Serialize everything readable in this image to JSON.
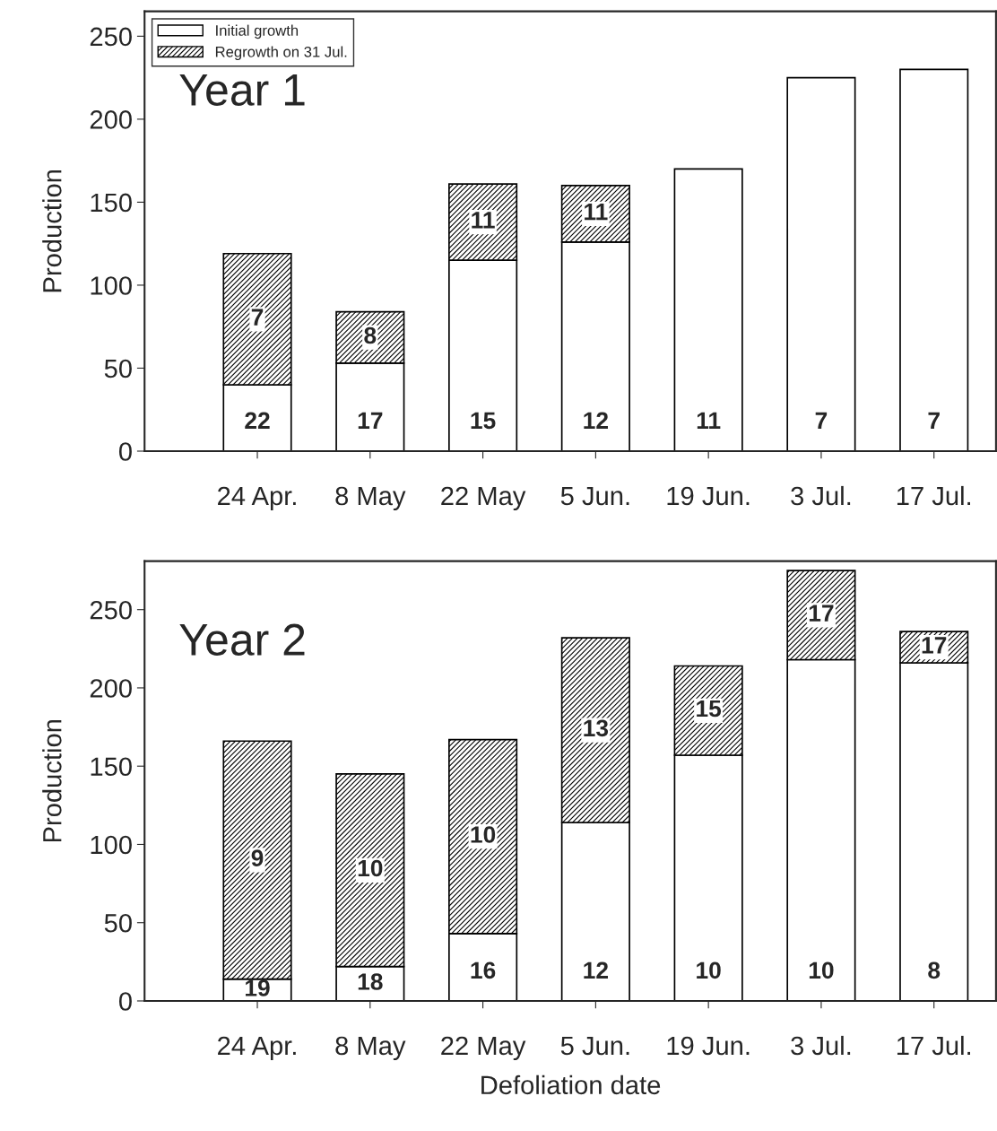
{
  "chart_data": [
    {
      "type": "bar",
      "title": "Year 1",
      "ylabel": "Production",
      "stacked": true,
      "legend": "top left",
      "grid": false,
      "categories": [
        "24 Apr.",
        "8 May",
        "22 May",
        "5 Jun.",
        "19 Jun.",
        "3 Jul.",
        "17 Jul."
      ],
      "ylim": [
        0,
        265
      ],
      "yticks": [
        0,
        50,
        100,
        150,
        200,
        250
      ],
      "series": [
        {
          "name": "Initial growth",
          "color": "#ffffff",
          "values": [
            40,
            53,
            115,
            126,
            170,
            225,
            230
          ]
        },
        {
          "name": "Regrowth on 31 Jul.",
          "color": "#000000",
          "values": [
            79,
            31,
            46,
            34,
            null,
            null,
            null
          ]
        }
      ],
      "annotations": [
        "22",
        "7",
        "17",
        "8",
        "15",
        "11",
        "12",
        "11",
        "11",
        "7",
        "7"
      ]
    },
    {
      "type": "bar",
      "title": "Year 2",
      "ylabel": "Production",
      "xlabel": "Defoliation date",
      "stacked": true,
      "grid": false,
      "categories": [
        "24 Apr.",
        "8 May",
        "22 May",
        "5 Jun.",
        "19 Jun.",
        "3 Jul.",
        "17 Jul."
      ],
      "ylim": [
        0,
        281
      ],
      "yticks": [
        0,
        50,
        100,
        150,
        200,
        250
      ],
      "series": [
        {
          "color": "#ffffff",
          "values": [
            14,
            22,
            43,
            114,
            157,
            218,
            216
          ]
        },
        {
          "color": "#000000",
          "values": [
            152,
            123,
            124,
            118,
            57,
            57,
            20
          ]
        }
      ],
      "annotations": [
        "19",
        "9",
        "18",
        "10",
        "16",
        "10",
        "12",
        "13",
        "10",
        "15",
        "10",
        "17",
        "8",
        "17"
      ]
    }
  ]
}
